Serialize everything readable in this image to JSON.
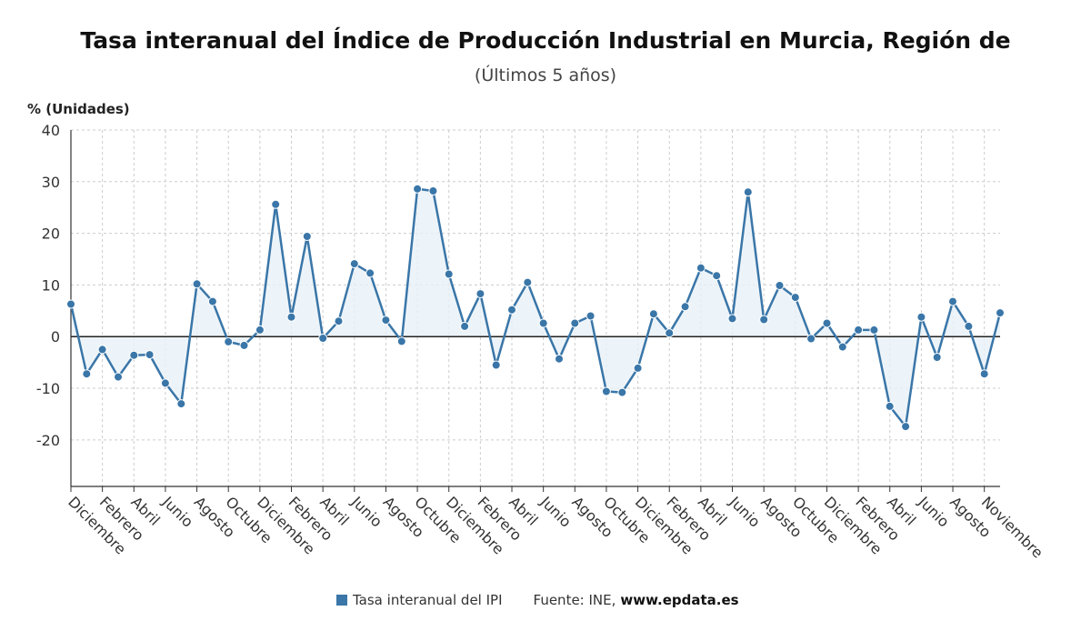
{
  "header": {
    "title": "Tasa interanual del Índice de Producción Industrial en Murcia, Región de",
    "subtitle": "(Últimos 5 años)"
  },
  "legend": {
    "series_label": "Tasa interanual del IPI",
    "source_label": "Fuente: INE,",
    "source_url": "www.epdata.es"
  },
  "colors": {
    "line": "#3a76a8",
    "fill": "#e9f1f8",
    "grid": "#cccccc",
    "axis": "#333333"
  },
  "chart_data": {
    "type": "area",
    "ylabel": "% (Unidades)",
    "ylim": [
      -29,
      40
    ],
    "yticks": [
      40,
      30,
      20,
      10,
      0,
      -10,
      -20
    ],
    "grid": true,
    "legend_position": "bottom",
    "x_tick_labels": [
      "Diciembre",
      "Febrero",
      "Abril",
      "Junio",
      "Agosto",
      "Octubre",
      "Diciembre",
      "Febrero",
      "Abril",
      "Junio",
      "Agosto",
      "Octubre",
      "Diciembre",
      "Febrero",
      "Abril",
      "Junio",
      "Agosto",
      "Octubre",
      "Diciembre",
      "Febrero",
      "Abril",
      "Junio",
      "Agosto",
      "Octubre",
      "Diciembre",
      "Febrero",
      "Abril",
      "Junio",
      "Agosto",
      "Noviembre"
    ],
    "series": [
      {
        "name": "Tasa interanual del IPI",
        "values": [
          6.3,
          -7.2,
          -2.5,
          -7.8,
          -3.6,
          -3.5,
          -9.0,
          -13.0,
          10.2,
          6.8,
          -1.0,
          -1.7,
          1.3,
          25.6,
          3.8,
          19.4,
          -0.3,
          3.0,
          14.1,
          12.3,
          3.2,
          -0.9,
          28.6,
          28.2,
          12.1,
          2.0,
          8.3,
          -5.5,
          5.2,
          10.5,
          2.6,
          -4.3,
          2.6,
          4.0,
          -10.6,
          -10.8,
          -6.1,
          4.4,
          0.7,
          5.8,
          13.3,
          11.8,
          3.5,
          28.0,
          3.3,
          9.9,
          7.6,
          -0.4,
          2.6,
          -2.0,
          1.3,
          1.3,
          -13.5,
          -17.4,
          3.8,
          -4.0,
          6.8,
          2.0,
          -7.2,
          4.6
        ]
      }
    ]
  }
}
